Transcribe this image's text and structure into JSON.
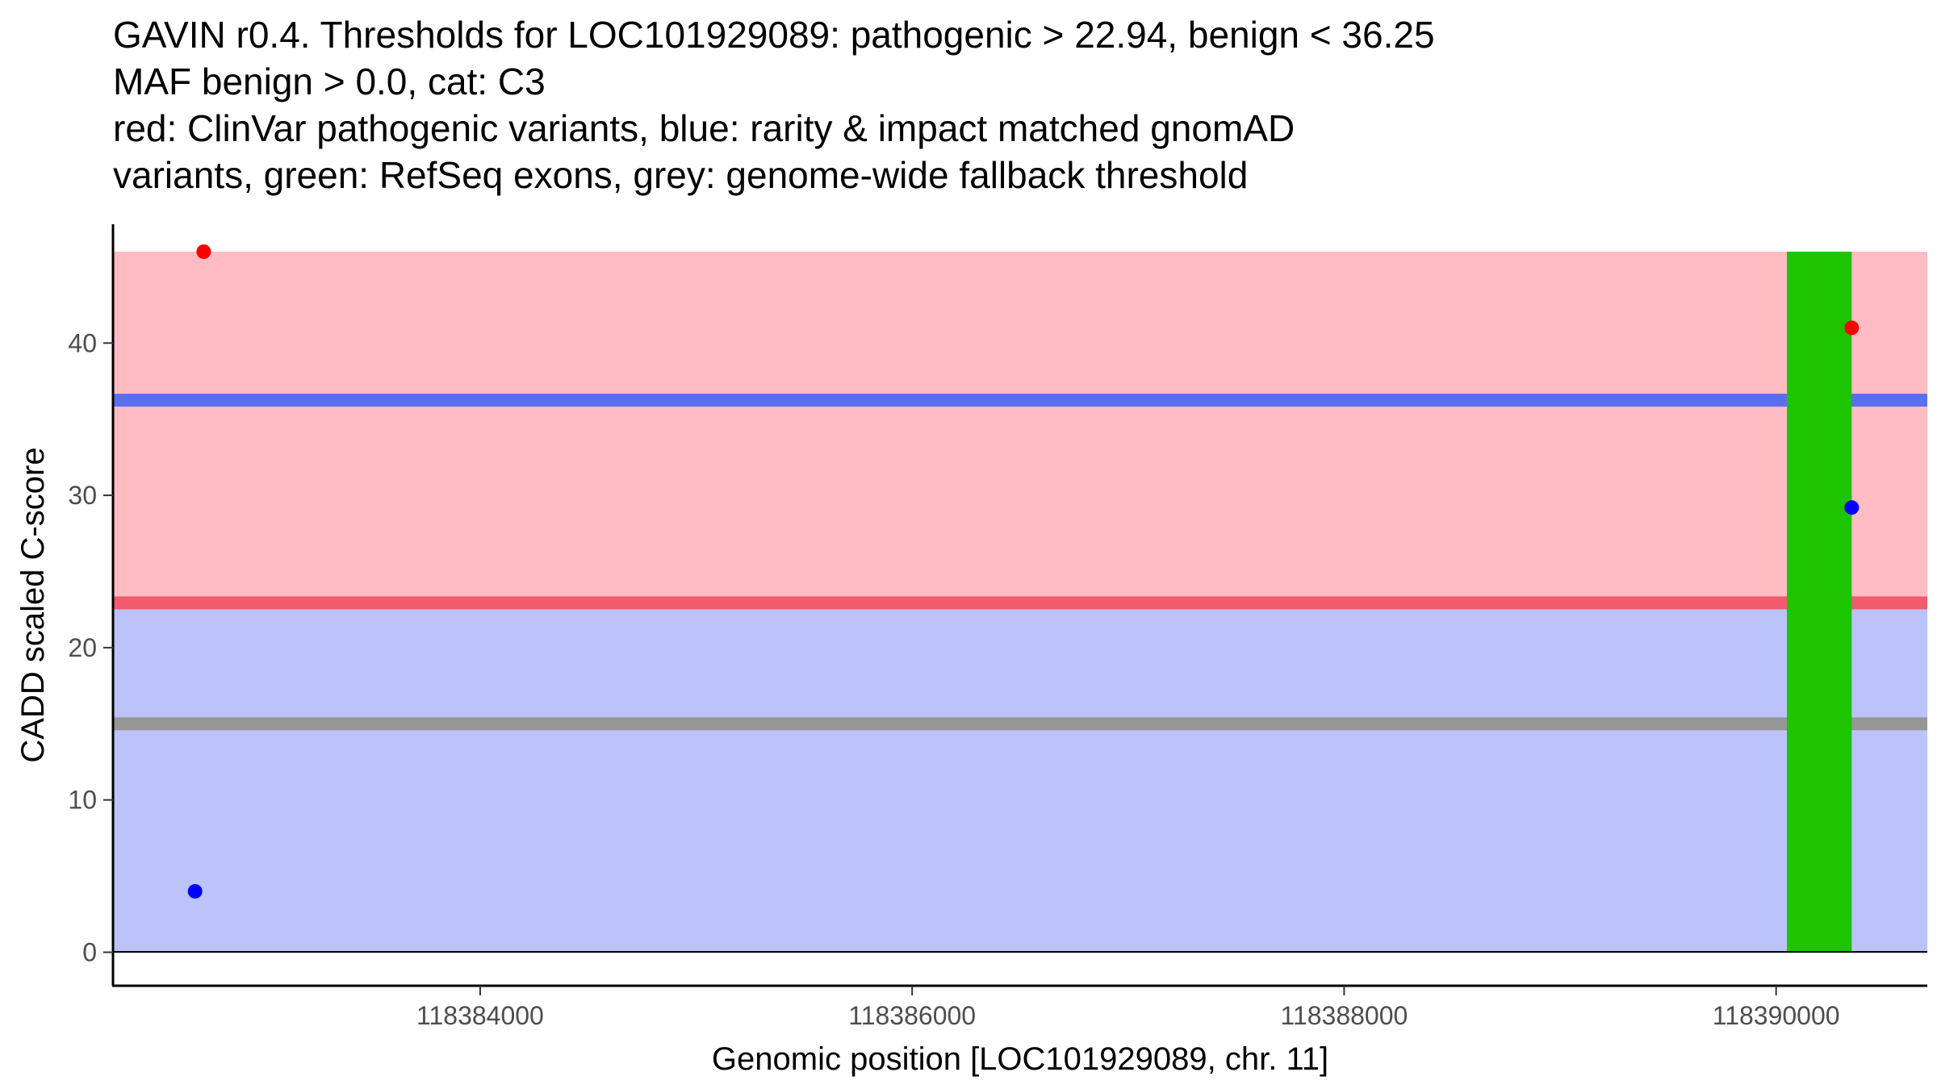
{
  "chart_data": {
    "type": "scatter",
    "title_lines": [
      "GAVIN r0.4. Thresholds for LOC101929089: pathogenic > 22.94, benign < 36.25",
      "MAF benign > 0.0, cat: C3",
      "red: ClinVar pathogenic variants, blue: rarity & impact matched gnomAD",
      "variants, green: RefSeq exons, grey: genome-wide fallback threshold"
    ],
    "xlabel": "Genomic position [LOC101929089, chr. 11]",
    "ylabel": "CADD scaled C-score",
    "xlim": [
      118382300,
      118390700
    ],
    "ylim": [
      -2.2,
      47.8
    ],
    "x_ticks": [
      118384000,
      118386000,
      118388000,
      118390000
    ],
    "x_tick_labels": [
      "118384000",
      "118386000",
      "118388000",
      "118390000"
    ],
    "y_ticks": [
      0,
      10,
      20,
      30,
      40
    ],
    "y_tick_labels": [
      "0",
      "10",
      "20",
      "30",
      "40"
    ],
    "grid": false,
    "regions": [
      {
        "name": "pathogenic",
        "y_from": 22.94,
        "y_to": 46,
        "color": "#FFBCC3"
      },
      {
        "name": "benign",
        "y_from": 0,
        "y_to": 22.94,
        "color": "#BCC2FA"
      }
    ],
    "threshold_lines": [
      {
        "name": "benign",
        "y": 36.25,
        "color": "#5A6FF0"
      },
      {
        "name": "pathogenic",
        "y": 22.94,
        "color": "#F25A6E"
      },
      {
        "name": "fallback",
        "y": 15,
        "color": "#969696"
      }
    ],
    "exons": [
      {
        "x_from": 118390050,
        "x_to": 118390350,
        "y_from": 0,
        "y_to": 46,
        "color": "#1DC400"
      }
    ],
    "series": [
      {
        "name": "ClinVar pathogenic",
        "color": "#FF0000",
        "points": [
          {
            "x": 118382720,
            "y": 46.0
          },
          {
            "x": 118390350,
            "y": 41.0
          }
        ]
      },
      {
        "name": "gnomAD matched",
        "color": "#0000FF",
        "points": [
          {
            "x": 118382680,
            "y": 4.0
          },
          {
            "x": 118390350,
            "y": 29.2
          }
        ]
      }
    ]
  }
}
